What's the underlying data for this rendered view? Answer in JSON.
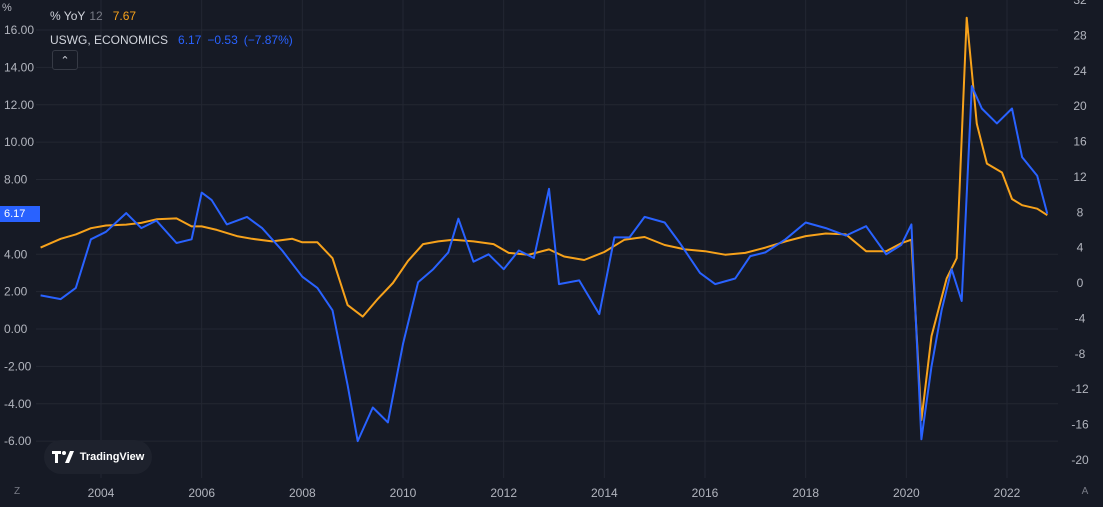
{
  "legend": {
    "series1_name": "% YoY",
    "series1_param": "12",
    "series1_value": "7.67",
    "series2_name": "USWG, ECONOMICS",
    "series2_value": "6.17",
    "series2_change": "−0.53",
    "series2_change_pct": "(−7.87%)"
  },
  "left_axis_unit": "%",
  "last_value_tag": "6.17",
  "logo_text": "TradingView",
  "corner_left": "Z",
  "corner_right": "A",
  "colors": {
    "background": "#161a25",
    "grid": "#232732",
    "blue_series": "#2962ff",
    "orange_series": "#f7a21b",
    "axis_text": "#b2b5be"
  },
  "chart_data": {
    "type": "line",
    "x_ticks": [
      "2004",
      "2006",
      "2008",
      "2010",
      "2012",
      "2014",
      "2016",
      "2018",
      "2020",
      "2022"
    ],
    "left_axis": {
      "ticks": [
        "16.00",
        "14.00",
        "12.00",
        "10.00",
        "8.00",
        "4.00",
        "2.00",
        "0.00",
        "-2.00",
        "-4.00",
        "-6.00"
      ],
      "ylim": [
        -7,
        17
      ]
    },
    "right_axis": {
      "ticks": [
        "32",
        "28",
        "24",
        "20",
        "16",
        "12",
        "8",
        "4",
        "0",
        "-4",
        "-8",
        "-12",
        "-16",
        "-20"
      ],
      "ylim": [
        -22,
        34
      ]
    },
    "series": [
      {
        "name": "USWG, ECONOMICS",
        "axis": "left",
        "x": [
          2002.8,
          2003.2,
          2003.5,
          2003.8,
          2004.1,
          2004.5,
          2004.8,
          2005.1,
          2005.5,
          2005.8,
          2006.0,
          2006.2,
          2006.5,
          2006.9,
          2007.2,
          2007.6,
          2008.0,
          2008.3,
          2008.6,
          2008.9,
          2009.1,
          2009.4,
          2009.7,
          2010.0,
          2010.3,
          2010.6,
          2010.9,
          2011.1,
          2011.4,
          2011.7,
          2012.0,
          2012.3,
          2012.6,
          2012.9,
          2013.1,
          2013.5,
          2013.9,
          2014.2,
          2014.5,
          2014.8,
          2015.2,
          2015.5,
          2015.9,
          2016.2,
          2016.6,
          2016.9,
          2017.2,
          2017.6,
          2018.0,
          2018.4,
          2018.8,
          2019.2,
          2019.6,
          2019.9,
          2020.1,
          2020.3,
          2020.5,
          2020.7,
          2020.9,
          2021.1,
          2021.3,
          2021.5,
          2021.8,
          2022.1,
          2022.3,
          2022.6,
          2022.8
        ],
        "values": [
          1.8,
          1.6,
          2.2,
          4.8,
          5.2,
          6.2,
          5.4,
          5.8,
          4.6,
          4.8,
          7.3,
          6.9,
          5.6,
          6.0,
          5.4,
          4.2,
          2.8,
          2.2,
          1.0,
          -3.0,
          -6.0,
          -4.2,
          -5.0,
          -0.8,
          2.5,
          3.2,
          4.1,
          5.9,
          3.6,
          4.0,
          3.2,
          4.2,
          3.8,
          7.5,
          2.4,
          2.6,
          0.8,
          4.9,
          4.9,
          6.0,
          5.7,
          4.6,
          3.0,
          2.4,
          2.7,
          3.9,
          4.1,
          4.8,
          5.7,
          5.4,
          5.0,
          5.5,
          4.0,
          4.5,
          5.6,
          -5.9,
          -2.0,
          1.0,
          3.2,
          1.5,
          13.0,
          11.8,
          11.0,
          11.8,
          9.2,
          8.2,
          6.17
        ]
      },
      {
        "name": "% YoY",
        "axis": "right",
        "x": [
          2002.8,
          2003.2,
          2003.5,
          2003.8,
          2004.1,
          2004.5,
          2004.8,
          2005.1,
          2005.5,
          2005.8,
          2006.0,
          2006.3,
          2006.7,
          2007.0,
          2007.4,
          2007.8,
          2008.0,
          2008.3,
          2008.6,
          2008.9,
          2009.2,
          2009.5,
          2009.8,
          2010.1,
          2010.4,
          2010.7,
          2011.0,
          2011.4,
          2011.8,
          2012.1,
          2012.5,
          2012.9,
          2013.2,
          2013.6,
          2014.0,
          2014.4,
          2014.8,
          2015.2,
          2015.6,
          2016.0,
          2016.4,
          2016.8,
          2017.2,
          2017.6,
          2018.0,
          2018.4,
          2018.8,
          2019.2,
          2019.6,
          2019.9,
          2020.1,
          2020.3,
          2020.5,
          2020.8,
          2021.0,
          2021.2,
          2021.4,
          2021.6,
          2021.9,
          2022.1,
          2022.3,
          2022.6,
          2022.8
        ],
        "values": [
          4.0,
          5.0,
          5.5,
          6.2,
          6.5,
          6.6,
          6.8,
          7.2,
          7.3,
          6.4,
          6.4,
          6.0,
          5.3,
          5.0,
          4.7,
          5.0,
          4.6,
          4.6,
          2.8,
          -2.5,
          -3.8,
          -1.8,
          0.0,
          2.5,
          4.4,
          4.7,
          4.9,
          4.7,
          4.4,
          3.4,
          3.2,
          3.8,
          3.0,
          2.6,
          3.5,
          4.9,
          5.2,
          4.3,
          3.8,
          3.6,
          3.2,
          3.4,
          4.0,
          4.7,
          5.3,
          5.6,
          5.5,
          3.6,
          3.6,
          4.5,
          4.9,
          -15.5,
          -6.0,
          0.5,
          2.8,
          30.0,
          18.0,
          13.5,
          12.5,
          9.5,
          8.8,
          8.4,
          7.67
        ]
      }
    ]
  }
}
